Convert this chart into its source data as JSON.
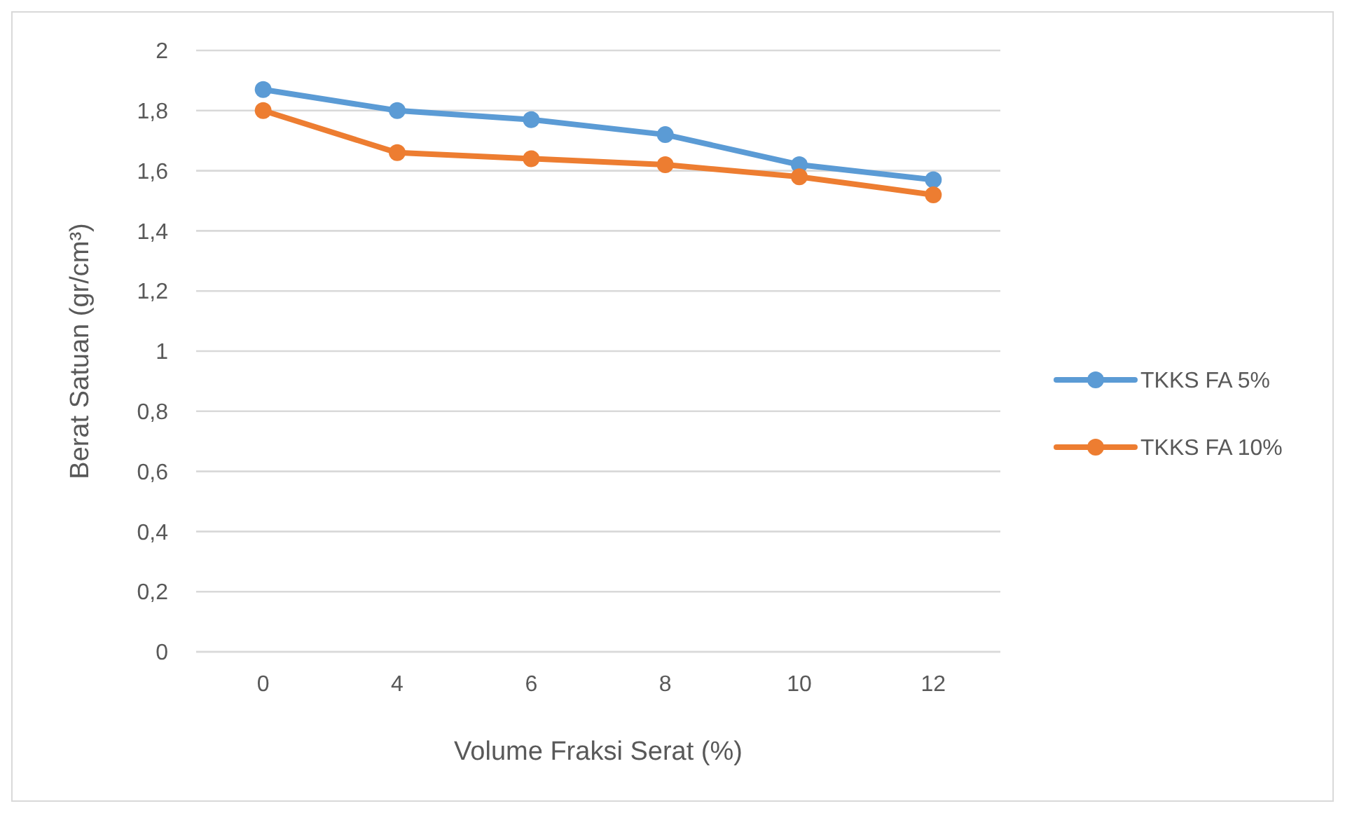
{
  "chart_data": {
    "type": "line",
    "xlabel": "Volume Fraksi Serat (%)",
    "ylabel": "Berat Satuan (gr/cm³)",
    "categories": [
      "0",
      "4",
      "6",
      "8",
      "10",
      "12"
    ],
    "series": [
      {
        "name": "TKKS FA 5%",
        "color": "#5b9bd5",
        "values": [
          1.87,
          1.8,
          1.77,
          1.72,
          1.62,
          1.57
        ]
      },
      {
        "name": "TKKS FA 10%",
        "color": "#ed7d31",
        "values": [
          1.8,
          1.66,
          1.64,
          1.62,
          1.58,
          1.52
        ]
      }
    ],
    "ylim": [
      0,
      2
    ],
    "yticks": [
      0,
      {
        "value": 0.2,
        "label": "0,2"
      },
      {
        "value": 0.4,
        "label": "0,4"
      },
      {
        "value": 0.6,
        "label": "0,6"
      },
      {
        "value": 0.8,
        "label": "0,8"
      },
      1,
      {
        "value": 1.2,
        "label": "1,2"
      },
      {
        "value": 1.4,
        "label": "1,4"
      },
      {
        "value": 1.6,
        "label": "1,6"
      },
      {
        "value": 1.8,
        "label": "1,8"
      },
      2
    ],
    "grid": "y",
    "legend": "right",
    "marker": "circle",
    "line_style": "solid"
  }
}
